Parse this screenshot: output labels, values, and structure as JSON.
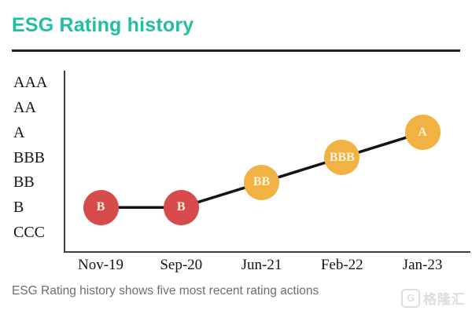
{
  "header": {
    "title": "ESG Rating history"
  },
  "caption": "ESG Rating history shows five most recent rating actions",
  "watermark": {
    "logo_letter": "G",
    "brand": "格隆汇"
  },
  "colors": {
    "title_teal": "#1fbfa2",
    "divider_dark": "#1b2126",
    "low_rating_red": "#d84b4c",
    "mid_rating_orange": "#f1b143",
    "line_black": "#141414",
    "axis_gray": "#3f3f3f",
    "caption_gray": "#6e6e6e"
  },
  "chart_data": {
    "type": "line",
    "title": "ESG Rating history",
    "x": [
      "Nov-19",
      "Sep-20",
      "Jun-21",
      "Feb-22",
      "Jan-23"
    ],
    "y_categories": [
      "AAA",
      "AA",
      "A",
      "BBB",
      "BB",
      "B",
      "CCC"
    ],
    "points": [
      {
        "date": "Nov-19",
        "rating": "B",
        "color": "#d84b4c"
      },
      {
        "date": "Sep-20",
        "rating": "B",
        "color": "#d84b4c"
      },
      {
        "date": "Jun-21",
        "rating": "BB",
        "color": "#f1b143"
      },
      {
        "date": "Feb-22",
        "rating": "BBB",
        "color": "#f1b143"
      },
      {
        "date": "Jan-23",
        "rating": "A",
        "color": "#f1b143"
      }
    ],
    "grid": false,
    "legend": false,
    "marker_label_inside": true
  }
}
